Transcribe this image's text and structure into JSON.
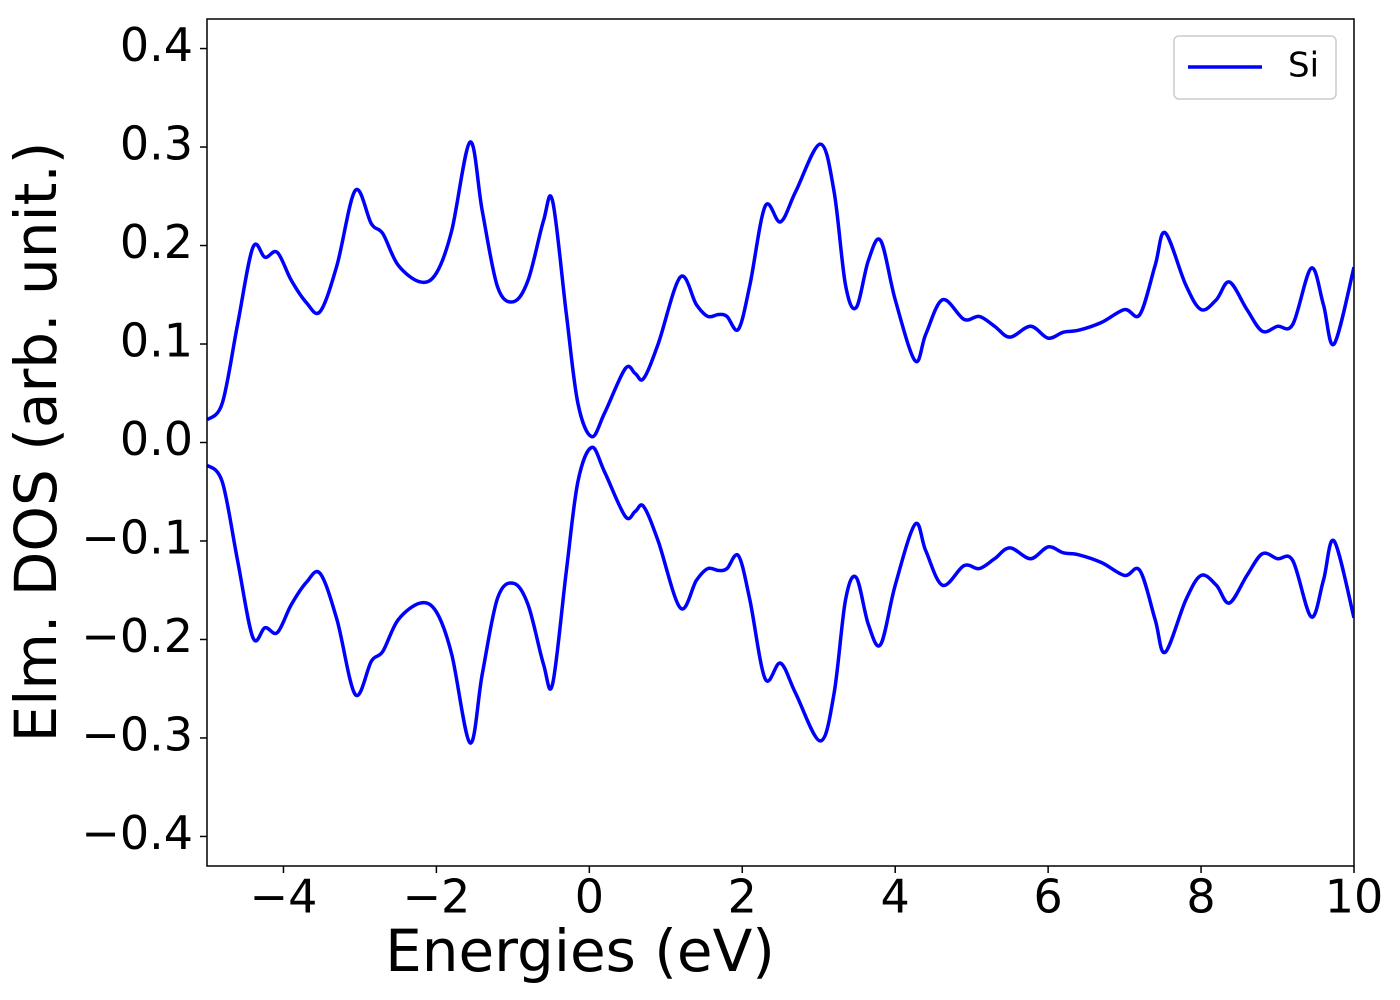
{
  "chart_data": {
    "type": "line",
    "xlabel": "Energies (eV)",
    "ylabel": "Elm. DOS (arb. unit.)",
    "x": [
      -5,
      -4.8,
      -4.6,
      -4.4,
      -4.24,
      -4.08,
      -3.9,
      -3.7,
      -3.52,
      -3.3,
      -3.06,
      -2.85,
      -2.7,
      -2.5,
      -2.21,
      -2.0,
      -1.8,
      -1.56,
      -1.4,
      -1.2,
      -0.99,
      -0.8,
      -0.6,
      -0.48,
      -0.3,
      -0.15,
      0.03,
      0.2,
      0.47,
      0.6,
      0.71,
      0.9,
      1.19,
      1.4,
      1.55,
      1.69,
      1.8,
      1.95,
      2.1,
      2.3,
      2.5,
      2.7,
      3.02,
      3.2,
      3.35,
      3.49,
      3.65,
      3.81,
      4.0,
      4.26,
      4.4,
      4.62,
      4.9,
      5.1,
      5.3,
      5.5,
      5.77,
      6.0,
      6.2,
      6.4,
      6.7,
      7.0,
      7.2,
      7.4,
      7.53,
      7.8,
      8.0,
      8.2,
      8.37,
      8.6,
      8.8,
      9.0,
      9.2,
      9.44,
      9.6,
      9.74,
      10
    ],
    "series": [
      {
        "name": "Si",
        "color": "#0000ff",
        "values": [
          0.023,
          0.04,
          0.12,
          0.198,
          0.188,
          0.193,
          0.165,
          0.142,
          0.133,
          0.18,
          0.256,
          0.222,
          0.212,
          0.18,
          0.163,
          0.172,
          0.215,
          0.305,
          0.235,
          0.158,
          0.143,
          0.165,
          0.225,
          0.245,
          0.13,
          0.04,
          0.006,
          0.03,
          0.075,
          0.07,
          0.065,
          0.1,
          0.168,
          0.14,
          0.128,
          0.13,
          0.128,
          0.115,
          0.16,
          0.24,
          0.224,
          0.255,
          0.303,
          0.255,
          0.16,
          0.137,
          0.185,
          0.205,
          0.145,
          0.083,
          0.11,
          0.145,
          0.125,
          0.128,
          0.118,
          0.107,
          0.118,
          0.106,
          0.112,
          0.114,
          0.122,
          0.135,
          0.13,
          0.18,
          0.213,
          0.16,
          0.135,
          0.145,
          0.163,
          0.135,
          0.113,
          0.118,
          0.12,
          0.177,
          0.14,
          0.1,
          0.178
        ]
      },
      {
        "color": "#0000ff",
        "values": [
          -0.023,
          -0.04,
          -0.12,
          -0.198,
          -0.188,
          -0.193,
          -0.165,
          -0.142,
          -0.133,
          -0.18,
          -0.256,
          -0.222,
          -0.212,
          -0.18,
          -0.163,
          -0.172,
          -0.215,
          -0.305,
          -0.235,
          -0.158,
          -0.143,
          -0.165,
          -0.225,
          -0.245,
          -0.13,
          -0.04,
          -0.005,
          -0.03,
          -0.075,
          -0.07,
          -0.065,
          -0.1,
          -0.168,
          -0.14,
          -0.128,
          -0.13,
          -0.128,
          -0.115,
          -0.16,
          -0.24,
          -0.224,
          -0.255,
          -0.303,
          -0.255,
          -0.16,
          -0.137,
          -0.185,
          -0.205,
          -0.145,
          -0.083,
          -0.11,
          -0.145,
          -0.125,
          -0.128,
          -0.118,
          -0.107,
          -0.118,
          -0.106,
          -0.112,
          -0.114,
          -0.122,
          -0.135,
          -0.13,
          -0.18,
          -0.213,
          -0.16,
          -0.135,
          -0.145,
          -0.163,
          -0.135,
          -0.113,
          -0.118,
          -0.12,
          -0.177,
          -0.14,
          -0.1,
          -0.178
        ]
      }
    ],
    "xlim": [
      -5,
      10
    ],
    "xticks": [
      {
        "value": -4,
        "label": "−4"
      },
      {
        "value": -2,
        "label": "−2"
      },
      0,
      2,
      4,
      6,
      8,
      10
    ],
    "ylim": [
      -0.43,
      0.43
    ],
    "yticks": [
      {
        "value": -0.4,
        "label": "−0.4"
      },
      {
        "value": -0.3,
        "label": "−0.3"
      },
      {
        "value": -0.2,
        "label": "−0.2"
      },
      {
        "value": -0.1,
        "label": "−0.1"
      },
      {
        "value": 0,
        "label": "0.0"
      },
      0.1,
      0.2,
      0.3,
      0.4
    ],
    "legend": "upper right"
  }
}
